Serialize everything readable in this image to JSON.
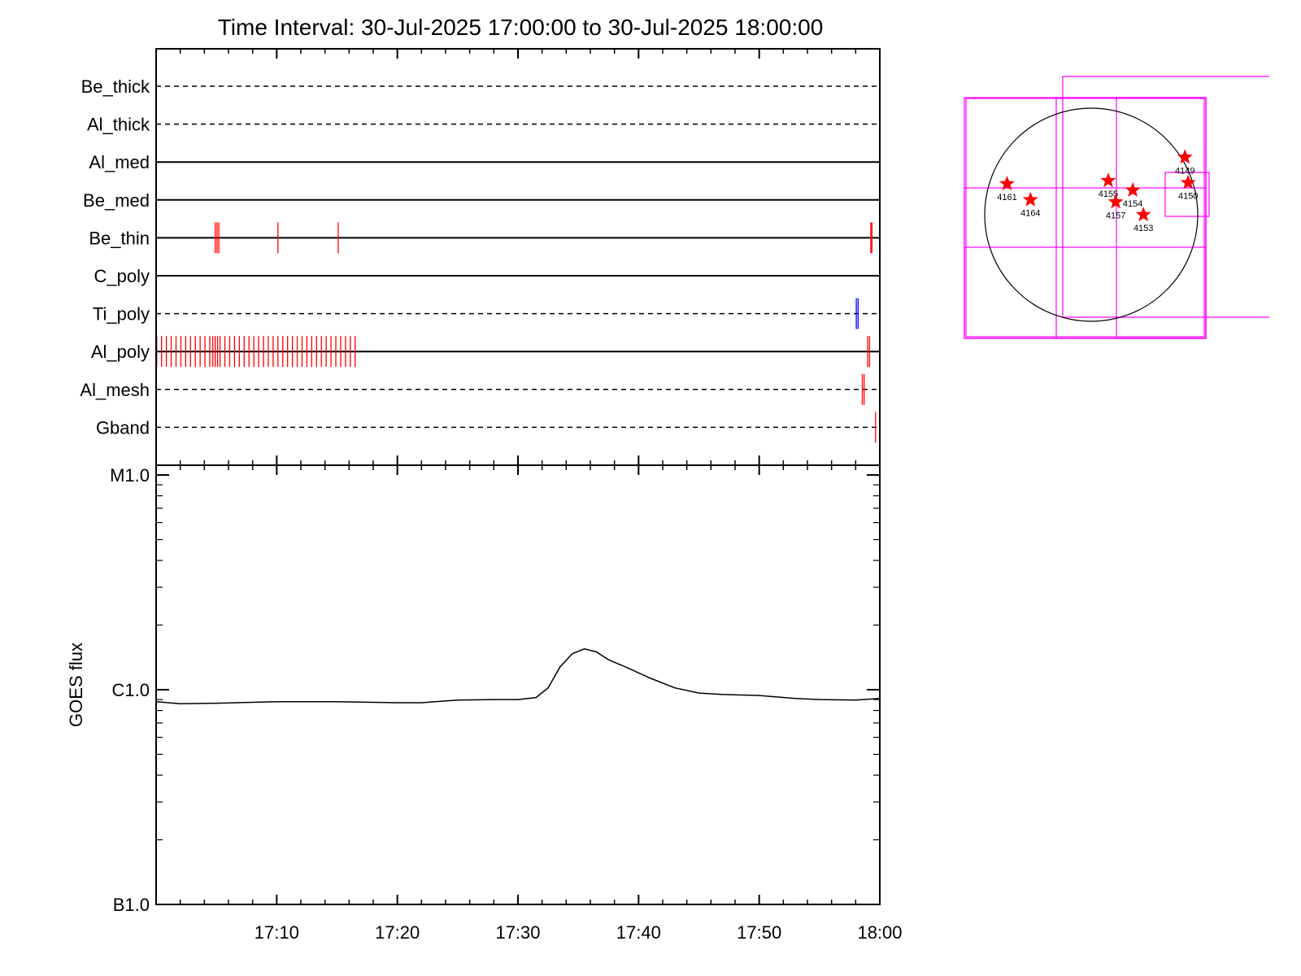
{
  "title": "Time Interval: 30-Jul-2025 17:00:00 to 30-Jul-2025 18:00:00",
  "chart_data": [
    {
      "type": "event-timeline",
      "x_range_minutes": [
        0,
        60
      ],
      "channels": [
        {
          "name": "Be_thick",
          "line": "dashed",
          "events": []
        },
        {
          "name": "Al_thick",
          "line": "dashed",
          "events": []
        },
        {
          "name": "Al_med",
          "line": "solid",
          "events": []
        },
        {
          "name": "Be_med",
          "line": "solid",
          "events": []
        },
        {
          "name": "Be_thin",
          "line": "solid",
          "events": [
            {
              "t": 4.9,
              "color": "#ff0000"
            },
            {
              "t": 5.05,
              "color": "#ff0000"
            },
            {
              "t": 5.2,
              "color": "#ff0000"
            },
            {
              "t": 10.1,
              "color": "#ff0000"
            },
            {
              "t": 15.1,
              "color": "#ff0000"
            },
            {
              "t": 59.25,
              "color": "#ff0000"
            },
            {
              "t": 59.35,
              "color": "#ff0000"
            }
          ]
        },
        {
          "name": "C_poly",
          "line": "solid",
          "events": []
        },
        {
          "name": "Ti_poly",
          "line": "dashed",
          "events": [
            {
              "t": 58.05,
              "color": "#0000ff"
            },
            {
              "t": 58.2,
              "color": "#0000ff"
            }
          ]
        },
        {
          "name": "Al_poly",
          "line": "solid",
          "events": [
            {
              "t": 0.05,
              "color": "#ff0000"
            },
            {
              "t": 0.45,
              "color": "#ff0000"
            },
            {
              "t": 0.85,
              "color": "#ff0000"
            },
            {
              "t": 1.25,
              "color": "#ff0000"
            },
            {
              "t": 1.65,
              "color": "#ff0000"
            },
            {
              "t": 2.05,
              "color": "#ff0000"
            },
            {
              "t": 2.45,
              "color": "#ff0000"
            },
            {
              "t": 2.85,
              "color": "#ff0000"
            },
            {
              "t": 3.25,
              "color": "#ff0000"
            },
            {
              "t": 3.65,
              "color": "#ff0000"
            },
            {
              "t": 4.05,
              "color": "#ff0000"
            },
            {
              "t": 4.45,
              "color": "#ff0000"
            },
            {
              "t": 4.7,
              "color": "#ff0000"
            },
            {
              "t": 4.9,
              "color": "#ff0000"
            },
            {
              "t": 5.1,
              "color": "#ff0000"
            },
            {
              "t": 5.3,
              "color": "#ff0000"
            },
            {
              "t": 5.7,
              "color": "#ff0000"
            },
            {
              "t": 6.1,
              "color": "#ff0000"
            },
            {
              "t": 6.5,
              "color": "#ff0000"
            },
            {
              "t": 6.9,
              "color": "#ff0000"
            },
            {
              "t": 7.3,
              "color": "#ff0000"
            },
            {
              "t": 7.7,
              "color": "#ff0000"
            },
            {
              "t": 8.1,
              "color": "#ff0000"
            },
            {
              "t": 8.5,
              "color": "#ff0000"
            },
            {
              "t": 8.9,
              "color": "#ff0000"
            },
            {
              "t": 9.3,
              "color": "#ff0000"
            },
            {
              "t": 9.7,
              "color": "#ff0000"
            },
            {
              "t": 10.1,
              "color": "#ff0000"
            },
            {
              "t": 10.5,
              "color": "#ff0000"
            },
            {
              "t": 10.9,
              "color": "#ff0000"
            },
            {
              "t": 11.3,
              "color": "#ff0000"
            },
            {
              "t": 11.7,
              "color": "#ff0000"
            },
            {
              "t": 12.1,
              "color": "#ff0000"
            },
            {
              "t": 12.5,
              "color": "#ff0000"
            },
            {
              "t": 12.9,
              "color": "#ff0000"
            },
            {
              "t": 13.3,
              "color": "#ff0000"
            },
            {
              "t": 13.7,
              "color": "#ff0000"
            },
            {
              "t": 14.1,
              "color": "#ff0000"
            },
            {
              "t": 14.5,
              "color": "#ff0000"
            },
            {
              "t": 14.9,
              "color": "#ff0000"
            },
            {
              "t": 15.3,
              "color": "#ff0000"
            },
            {
              "t": 15.7,
              "color": "#ff0000"
            },
            {
              "t": 16.1,
              "color": "#ff0000"
            },
            {
              "t": 16.5,
              "color": "#ff0000"
            },
            {
              "t": 59.0,
              "color": "#ff0000"
            },
            {
              "t": 59.15,
              "color": "#ff0000"
            }
          ]
        },
        {
          "name": "Al_mesh",
          "line": "dashed",
          "events": [
            {
              "t": 58.55,
              "color": "#ff0000"
            },
            {
              "t": 58.7,
              "color": "#ff0000"
            }
          ]
        },
        {
          "name": "Gband",
          "line": "dashed",
          "events": [
            {
              "t": 59.65,
              "color": "#ff0000"
            }
          ]
        }
      ]
    },
    {
      "type": "line",
      "ylabel": "GOES flux",
      "y_scale": "log",
      "y_ticks": [
        {
          "label": "M1.0",
          "value": 1e-05
        },
        {
          "label": "C1.0",
          "value": 1e-06
        },
        {
          "label": "B1.0",
          "value": 1e-07
        }
      ],
      "x_tick_labels": [
        "17:10",
        "17:20",
        "17:30",
        "17:40",
        "17:50",
        "18:00"
      ],
      "x_range_minutes": [
        0,
        60
      ],
      "series": [
        {
          "color": "#000000",
          "points": [
            [
              0,
              8.8e-07
            ],
            [
              2,
              8.6e-07
            ],
            [
              5,
              8.65e-07
            ],
            [
              10,
              8.8e-07
            ],
            [
              15,
              8.8e-07
            ],
            [
              20,
              8.7e-07
            ],
            [
              22,
              8.7e-07
            ],
            [
              25,
              8.95e-07
            ],
            [
              28,
              9e-07
            ],
            [
              30,
              9e-07
            ],
            [
              31.5,
              9.2e-07
            ],
            [
              32.5,
              1.02e-06
            ],
            [
              33.5,
              1.28e-06
            ],
            [
              34.5,
              1.47e-06
            ],
            [
              35.5,
              1.55e-06
            ],
            [
              36.5,
              1.5e-06
            ],
            [
              37.5,
              1.38e-06
            ],
            [
              39,
              1.27e-06
            ],
            [
              41,
              1.13e-06
            ],
            [
              43,
              1.02e-06
            ],
            [
              45,
              9.65e-07
            ],
            [
              47,
              9.5e-07
            ],
            [
              50,
              9.4e-07
            ],
            [
              53,
              9.1e-07
            ],
            [
              55,
              9e-07
            ],
            [
              58,
              8.95e-07
            ],
            [
              60,
              9.1e-07
            ]
          ]
        }
      ]
    }
  ],
  "sun_map": {
    "frame_color": "#ff00ff",
    "marker_color": "#ff0000",
    "regions": [
      {
        "label": "4149",
        "marker": [
          0.88,
          0.54
        ]
      },
      {
        "label": "4161",
        "marker": [
          -0.79,
          0.29
        ]
      },
      {
        "label": "4164",
        "marker": [
          -0.57,
          0.14
        ]
      },
      {
        "label": "4155",
        "marker": [
          0.16,
          0.32
        ]
      },
      {
        "label": "4154",
        "marker": [
          0.39,
          0.23
        ]
      },
      {
        "label": "4157",
        "marker": [
          0.23,
          0.12
        ]
      },
      {
        "label": "4153",
        "marker": [
          0.49,
          0.0
        ]
      },
      {
        "label": "4150",
        "marker": [
          0.91,
          0.3
        ]
      }
    ]
  }
}
